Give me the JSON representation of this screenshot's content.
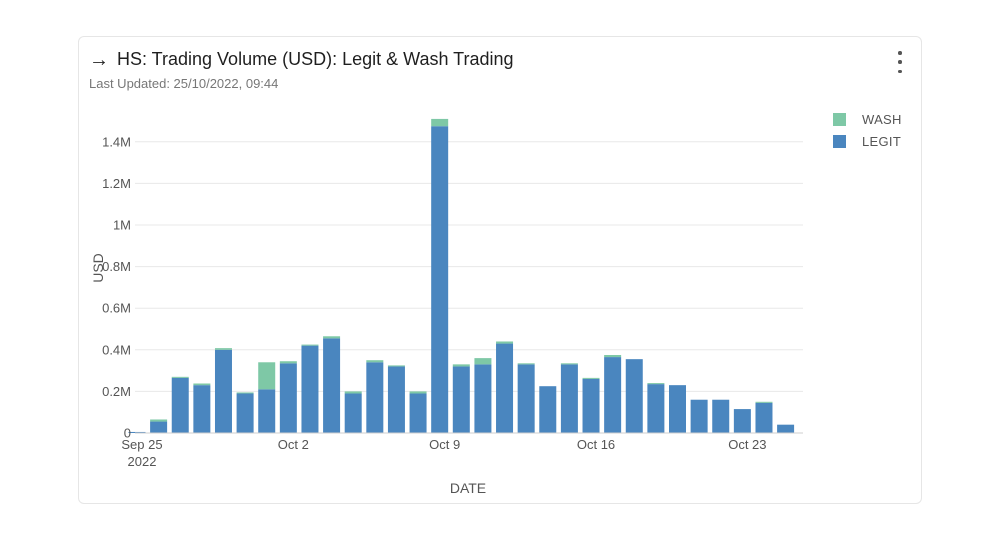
{
  "header": {
    "arrow_icon": "→",
    "title": "HS: Trading Volume (USD): Legit & Wash Trading",
    "subtitle": "Last Updated: 25/10/2022, 09:44"
  },
  "colors": {
    "wash": "#7ec8a6",
    "legit": "#4a86bf",
    "grid": "#e8e8e8"
  },
  "chart_data": {
    "type": "bar",
    "stacked": true,
    "xlabel": "DATE",
    "ylabel": "USD",
    "ylim": [
      0,
      1500000
    ],
    "yticks": [
      0,
      200000,
      400000,
      600000,
      800000,
      1000000,
      1200000,
      1400000
    ],
    "ytick_labels": [
      "0",
      "0.2M",
      "0.4M",
      "0.6M",
      "0.8M",
      "1M",
      "1.2M",
      "1.4M"
    ],
    "xtick_labels": [
      {
        "date": "2022-09-25",
        "label": "Sep 25",
        "sublabel": "2022"
      },
      {
        "date": "2022-10-02",
        "label": "Oct 2",
        "sublabel": ""
      },
      {
        "date": "2022-10-09",
        "label": "Oct 9",
        "sublabel": ""
      },
      {
        "date": "2022-10-16",
        "label": "Oct 16",
        "sublabel": ""
      },
      {
        "date": "2022-10-23",
        "label": "Oct 23",
        "sublabel": ""
      }
    ],
    "legend_position": "top-right",
    "categories": [
      "2022-09-25",
      "2022-09-26",
      "2022-09-27",
      "2022-09-28",
      "2022-09-29",
      "2022-09-30",
      "2022-10-01",
      "2022-10-02",
      "2022-10-03",
      "2022-10-04",
      "2022-10-05",
      "2022-10-06",
      "2022-10-07",
      "2022-10-08",
      "2022-10-09",
      "2022-10-10",
      "2022-10-11",
      "2022-10-12",
      "2022-10-13",
      "2022-10-14",
      "2022-10-15",
      "2022-10-16",
      "2022-10-17",
      "2022-10-18",
      "2022-10-19",
      "2022-10-20",
      "2022-10-21",
      "2022-10-22",
      "2022-10-23",
      "2022-10-24",
      "2022-10-25"
    ],
    "series": [
      {
        "name": "WASH",
        "values": [
          0,
          10000,
          5000,
          8000,
          8000,
          5000,
          130000,
          10000,
          5000,
          10000,
          10000,
          10000,
          5000,
          10000,
          35000,
          10000,
          30000,
          10000,
          5000,
          0,
          5000,
          5000,
          10000,
          0,
          5000,
          0,
          0,
          0,
          0,
          5000,
          0
        ]
      },
      {
        "name": "LEGIT",
        "values": [
          5000,
          55000,
          265000,
          230000,
          400000,
          190000,
          210000,
          335000,
          420000,
          455000,
          190000,
          340000,
          320000,
          190000,
          1475000,
          320000,
          330000,
          430000,
          330000,
          225000,
          330000,
          260000,
          365000,
          355000,
          235000,
          230000,
          160000,
          160000,
          115000,
          145000,
          40000
        ]
      }
    ]
  }
}
